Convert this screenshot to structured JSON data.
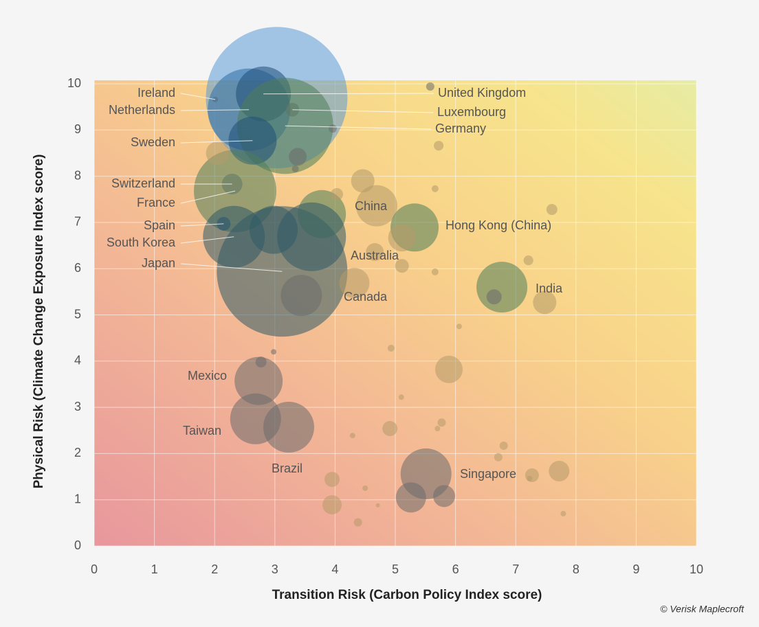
{
  "chart_data": {
    "type": "bubble",
    "x_label": "Transition Risk (Carbon Policy Index score)",
    "y_label": "Physical Risk (Climate Change Exposure Index score)",
    "source": "© Verisk Maplecroft",
    "xlim": [
      0,
      10
    ],
    "ylim": [
      0,
      10
    ],
    "xticks": [
      0,
      1,
      2,
      3,
      4,
      5,
      6,
      7,
      8,
      9,
      10
    ],
    "yticks": [
      0,
      1,
      2,
      3,
      4,
      5,
      6,
      7,
      8,
      9,
      10
    ],
    "grid": true,
    "x": [
      3.03,
      2.01,
      2.57,
      2.81,
      3.29,
      3.17,
      2.63,
      2.29,
      2.34,
      2.15,
      2.32,
      3.12,
      4.69,
      5.32,
      4.66,
      4.32,
      6.77,
      2.73,
      2.68,
      3.23,
      5.51,
      2.98,
      3.78,
      3.61,
      3.44,
      3.38,
      2.05,
      4.46,
      4.03,
      5.11,
      5.11,
      7.21,
      7.6,
      7.48,
      6.64,
      5.72,
      5.66,
      5.89,
      4.91,
      3.95,
      3.95,
      4.38,
      5.81,
      5.26,
      7.27,
      7.72,
      2.77,
      5.77,
      6.8,
      6.71,
      4.93,
      6.06,
      5.58,
      3.96,
      3.34,
      4.29,
      5.1,
      5.66,
      7.79,
      4.5,
      2.98,
      5.7,
      4.71,
      7.23
    ],
    "y": [
      9.7,
      9.66,
      9.44,
      9.78,
      9.44,
      9.09,
      8.77,
      7.83,
      7.68,
      6.97,
      6.69,
      5.94,
      7.36,
      6.89,
      6.36,
      5.69,
      5.6,
      3.57,
      2.75,
      2.57,
      1.56,
      6.84,
      7.18,
      6.69,
      5.42,
      8.42,
      8.5,
      7.9,
      7.61,
      6.67,
      6.06,
      6.18,
      7.28,
      5.27,
      5.39,
      8.66,
      7.73,
      3.82,
      2.54,
      1.44,
      0.89,
      0.51,
      1.08,
      1.05,
      1.53,
      1.62,
      3.98,
      2.67,
      2.17,
      1.92,
      4.28,
      4.75,
      9.94,
      9.03,
      8.16,
      2.39,
      3.22,
      5.93,
      0.7,
      1.25,
      4.2,
      2.54,
      0.88,
      1.46
    ],
    "size": [
      424,
      0.64,
      144,
      64,
      4,
      196,
      49,
      9,
      144,
      4,
      81,
      361,
      36,
      49,
      6.76,
      19.36,
      54.76,
      49,
      54.76,
      54.76,
      54.76,
      49,
      49,
      100,
      36,
      6.76,
      11.56,
      11.56,
      3.24,
      16,
      4,
      2,
      2.56,
      11.56,
      4.84,
      2,
      1,
      16,
      4.84,
      4.84,
      7.84,
      1.44,
      10.24,
      19.36,
      4,
      9,
      2.56,
      1.44,
      1.44,
      1.44,
      1,
      0.64,
      1.44,
      1.44,
      1,
      0.64,
      0.64,
      1,
      0.64,
      0.64,
      0.64,
      0.64,
      0.36,
      0.64
    ],
    "labels": [
      null,
      "Ireland",
      "Netherlands",
      "United Kingdom",
      "Luxembourg",
      "Germany",
      "Sweden",
      "Switzerland",
      "France",
      "Spain",
      "South Korea",
      "Japan",
      "China",
      "Hong Kong (China)",
      "Australia",
      "Canada",
      "India",
      "Mexico",
      "Taiwan",
      "Brazil",
      "Singapore",
      null,
      null,
      null,
      null,
      null,
      null,
      null,
      null,
      null,
      null,
      null,
      null,
      null,
      null,
      null,
      null,
      null,
      null,
      null,
      null,
      null,
      null,
      null,
      null,
      null,
      null,
      null,
      null,
      null,
      null,
      null,
      null,
      null,
      null,
      null,
      null,
      null,
      null,
      null,
      null,
      null,
      null,
      null
    ],
    "colors": [
      "#5b9bd5",
      "#6b6b6b",
      "#2e6da4",
      "#1f4e79",
      "#6b6b6b",
      "#4e7d5a",
      "#1f4e79",
      "#6b6b6b",
      "#4e7d5a",
      "#1f4e79",
      "#2f5a66",
      "#2f5a66",
      "#b59a6a",
      "#4e7d5a",
      "#b59a6a",
      "#b59a6a",
      "#4e7d5a",
      "#6b6b6b",
      "#6b6b6b",
      "#6b6b6b",
      "#6b6b6b",
      "#2f5a66",
      "#4e7d5a",
      "#2f5a66",
      "#6b6b6b",
      "#6b6b6b",
      "#b59a6a",
      "#b59a6a",
      "#b59a6a",
      "#b59a6a",
      "#b59a6a",
      "#b59a6a",
      "#b59a6a",
      "#b59a6a",
      "#6b6b6b",
      "#b59a6a",
      "#b59a6a",
      "#b59a6a",
      "#b59a6a",
      "#b59a6a",
      "#b59a6a",
      "#b59a6a",
      "#6b6b6b",
      "#6b6b6b",
      "#b59a6a",
      "#b59a6a",
      "#6b6b6b",
      "#b59a6a",
      "#b59a6a",
      "#b59a6a",
      "#b59a6a",
      "#b59a6a",
      "#6b6b6b",
      "#6b6b6b",
      "#6b6b6b",
      "#b59a6a",
      "#b59a6a",
      "#b59a6a",
      "#b59a6a",
      "#b59a6a",
      "#6b6b6b",
      "#b59a6a",
      "#b59a6a",
      "#b59a6a"
    ]
  }
}
